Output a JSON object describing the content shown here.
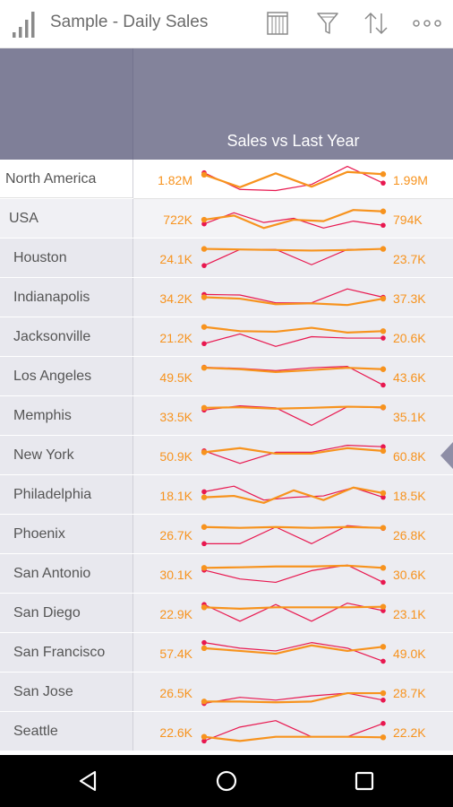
{
  "app_bar": {
    "title": "Sample - Daily Sales",
    "icons": [
      "chart-bars-icon",
      "table-icon",
      "filter-icon",
      "sort-icon",
      "more-icon"
    ]
  },
  "column": {
    "title": "Sales vs Last Year"
  },
  "colors": {
    "current_line": "#f7931e",
    "last_year_line": "#e8174f",
    "header": "#83839b"
  },
  "rows": [
    {
      "name": "North America",
      "level": 0,
      "current": "1.82M",
      "last_year": "1.99M",
      "orange": [
        0.35,
        0.8,
        0.3,
        0.78,
        0.25,
        0.33
      ],
      "red": [
        0.28,
        0.88,
        0.92,
        0.7,
        0.05,
        0.65
      ]
    },
    {
      "name": "USA",
      "level": 1,
      "current": "722K",
      "last_year": "794K",
      "orange": [
        0.55,
        0.4,
        0.85,
        0.55,
        0.6,
        0.2,
        0.25
      ],
      "red": [
        0.7,
        0.3,
        0.65,
        0.5,
        0.85,
        0.6,
        0.75
      ]
    },
    {
      "name": "Houston",
      "level": 2,
      "current": "24.1K",
      "last_year": "23.7K",
      "orange": [
        0.18,
        0.2,
        0.22,
        0.24,
        0.22,
        0.18
      ],
      "red": [
        0.78,
        0.2,
        0.2,
        0.75,
        0.2,
        0.18
      ]
    },
    {
      "name": "Indianapolis",
      "level": 2,
      "current": "34.2K",
      "last_year": "37.3K",
      "orange": [
        0.5,
        0.55,
        0.75,
        0.72,
        0.78,
        0.55
      ],
      "red": [
        0.4,
        0.42,
        0.7,
        0.7,
        0.2,
        0.5
      ]
    },
    {
      "name": "Jacksonville",
      "level": 2,
      "current": "21.2K",
      "last_year": "20.6K",
      "orange": [
        0.15,
        0.3,
        0.32,
        0.18,
        0.35,
        0.3
      ],
      "red": [
        0.75,
        0.4,
        0.85,
        0.5,
        0.55,
        0.55
      ]
    },
    {
      "name": "Los Angeles",
      "level": 2,
      "current": "49.5K",
      "last_year": "43.6K",
      "orange": [
        0.2,
        0.25,
        0.35,
        0.28,
        0.2,
        0.25
      ],
      "red": [
        0.18,
        0.22,
        0.3,
        0.2,
        0.15,
        0.82
      ]
    },
    {
      "name": "Memphis",
      "level": 2,
      "current": "33.5K",
      "last_year": "35.1K",
      "orange": [
        0.22,
        0.2,
        0.25,
        0.22,
        0.18,
        0.2
      ],
      "red": [
        0.3,
        0.15,
        0.22,
        0.85,
        0.18,
        0.22
      ]
    },
    {
      "name": "New York",
      "level": 2,
      "current": "50.9K",
      "last_year": "60.8K",
      "orange": [
        0.4,
        0.25,
        0.45,
        0.45,
        0.25,
        0.35
      ],
      "red": [
        0.35,
        0.8,
        0.4,
        0.4,
        0.15,
        0.2
      ]
    },
    {
      "name": "Philadelphia",
      "level": 2,
      "current": "18.1K",
      "last_year": "18.5K",
      "orange": [
        0.6,
        0.55,
        0.8,
        0.35,
        0.7,
        0.25,
        0.45
      ],
      "red": [
        0.4,
        0.2,
        0.7,
        0.6,
        0.55,
        0.25,
        0.6
      ]
    },
    {
      "name": "Phoenix",
      "level": 2,
      "current": "26.7K",
      "last_year": "26.8K",
      "orange": [
        0.25,
        0.28,
        0.25,
        0.28,
        0.25,
        0.28
      ],
      "red": [
        0.85,
        0.85,
        0.25,
        0.85,
        0.2,
        0.3
      ]
    },
    {
      "name": "San Antonio",
      "level": 2,
      "current": "30.1K",
      "last_year": "30.6K",
      "orange": [
        0.3,
        0.28,
        0.25,
        0.25,
        0.22,
        0.3
      ],
      "red": [
        0.38,
        0.7,
        0.82,
        0.4,
        0.2,
        0.82
      ]
    },
    {
      "name": "San Diego",
      "level": 2,
      "current": "22.9K",
      "last_year": "23.1K",
      "orange": [
        0.3,
        0.35,
        0.3,
        0.3,
        0.3,
        0.28
      ],
      "red": [
        0.2,
        0.8,
        0.2,
        0.8,
        0.15,
        0.42
      ]
    },
    {
      "name": "San Francisco",
      "level": 2,
      "current": "57.4K",
      "last_year": "49.0K",
      "orange": [
        0.35,
        0.45,
        0.55,
        0.25,
        0.45,
        0.3
      ],
      "red": [
        0.15,
        0.35,
        0.45,
        0.15,
        0.35,
        0.82
      ]
    },
    {
      "name": "San Jose",
      "level": 2,
      "current": "26.5K",
      "last_year": "28.7K",
      "orange": [
        0.85,
        0.85,
        0.88,
        0.85,
        0.55,
        0.55
      ],
      "red": [
        0.92,
        0.7,
        0.8,
        0.65,
        0.55,
        0.8
      ]
    },
    {
      "name": "Seattle",
      "level": 2,
      "current": "22.6K",
      "last_year": "22.2K",
      "orange": [
        0.7,
        0.85,
        0.7,
        0.7,
        0.7,
        0.72
      ],
      "red": [
        0.85,
        0.35,
        0.12,
        0.7,
        0.7,
        0.22
      ]
    }
  ]
}
